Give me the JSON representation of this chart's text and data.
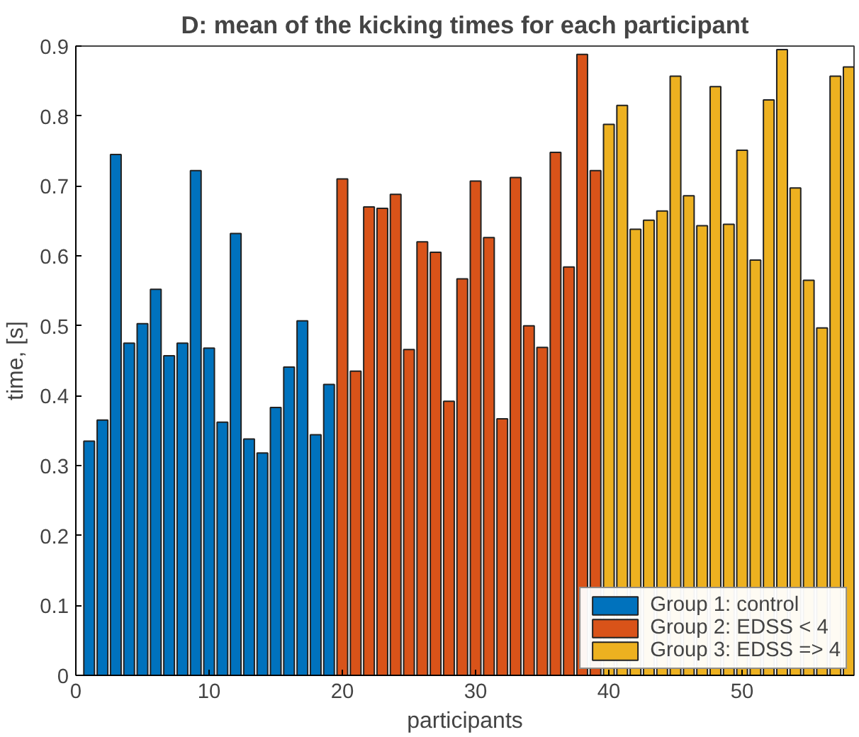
{
  "chart_data": {
    "type": "bar",
    "title": "D: mean of the kicking times for each participant",
    "xlabel": "participants",
    "ylabel": "time, [s]",
    "series": [
      {
        "name": "Group 1: control",
        "color": "#0072bd",
        "x": [
          1,
          2,
          3,
          4,
          5,
          6,
          7,
          8,
          9,
          10,
          11,
          12,
          13,
          14,
          15,
          16,
          17,
          18,
          19
        ],
        "values": [
          0.335,
          0.365,
          0.745,
          0.475,
          0.503,
          0.552,
          0.457,
          0.475,
          0.722,
          0.468,
          0.362,
          0.632,
          0.338,
          0.318,
          0.383,
          0.441,
          0.507,
          0.344,
          0.416
        ]
      },
      {
        "name": "Group 2: EDSS < 4",
        "color": "#d95319",
        "x": [
          20,
          21,
          22,
          23,
          24,
          25,
          26,
          27,
          28,
          29,
          30,
          31,
          32,
          33,
          34,
          35,
          36,
          37,
          38,
          39
        ],
        "values": [
          0.71,
          0.435,
          0.67,
          0.668,
          0.688,
          0.466,
          0.62,
          0.605,
          0.392,
          0.567,
          0.707,
          0.626,
          0.367,
          0.712,
          0.5,
          0.469,
          0.748,
          0.584,
          0.888,
          0.722
        ]
      },
      {
        "name": "Group 3: EDSS => 4",
        "color": "#edb120",
        "x": [
          40,
          41,
          42,
          43,
          44,
          45,
          46,
          47,
          48,
          49,
          50,
          51,
          52,
          53,
          54,
          55,
          56,
          57,
          58
        ],
        "values": [
          0.788,
          0.815,
          0.638,
          0.651,
          0.664,
          0.857,
          0.686,
          0.643,
          0.842,
          0.645,
          0.751,
          0.594,
          0.823,
          0.895,
          0.697,
          0.565,
          0.497,
          0.857,
          0.87
        ]
      }
    ],
    "xlim": [
      0,
      58.4
    ],
    "xticks": [
      0,
      10,
      20,
      30,
      40,
      50
    ],
    "ylim": [
      0,
      0.9
    ],
    "yticks": [
      0,
      0.1,
      0.2,
      0.3,
      0.4,
      0.5,
      0.6,
      0.7,
      0.8,
      0.9
    ],
    "grid": false,
    "legend": "bottom right"
  }
}
